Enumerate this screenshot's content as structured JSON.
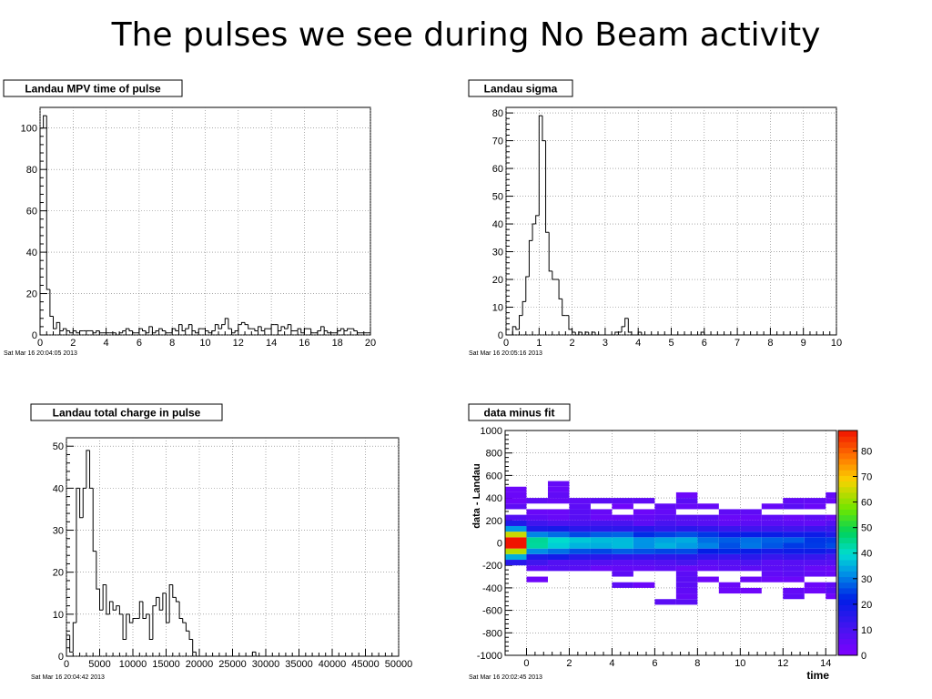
{
  "slide_title": "The pulses we see during No Beam activity",
  "chart_data": [
    {
      "type": "bar",
      "title": "Landau MPV time of pulse",
      "timestamp": "Sat Mar 16 20:04:05 2013",
      "xlabel": "",
      "ylabel": "",
      "xlim": [
        0,
        20
      ],
      "ylim": [
        0,
        110
      ],
      "grid": true,
      "x_ticks": [
        0,
        2,
        4,
        6,
        8,
        10,
        12,
        14,
        16,
        18,
        20
      ],
      "y_ticks": [
        0,
        20,
        40,
        60,
        80,
        100
      ],
      "bin_start": 0,
      "bin_width": 0.2,
      "values": [
        100,
        106,
        22,
        9,
        3,
        6,
        2,
        3,
        2,
        1,
        2,
        1,
        2,
        2,
        2,
        2,
        1,
        2,
        1,
        1,
        1,
        1,
        1,
        0,
        1,
        2,
        3,
        2,
        1,
        1,
        3,
        2,
        1,
        4,
        1,
        2,
        3,
        2,
        1,
        1,
        3,
        2,
        5,
        2,
        3,
        5,
        2,
        1,
        3,
        3,
        2,
        1,
        2,
        5,
        3,
        5,
        8,
        3,
        1,
        2,
        5,
        6,
        5,
        3,
        3,
        2,
        4,
        2,
        3,
        3,
        5,
        5,
        2,
        4,
        3,
        5,
        2,
        2,
        3,
        1,
        3,
        3,
        1,
        1,
        2,
        4,
        2,
        1,
        1,
        1,
        2,
        3,
        2,
        3,
        3,
        2,
        1,
        1,
        1,
        1,
        2,
        3,
        1,
        1,
        2,
        1,
        1,
        1,
        1,
        1,
        1,
        1,
        1,
        0,
        1,
        1,
        0,
        1,
        0,
        1,
        1,
        1,
        0,
        1,
        1,
        1,
        1,
        1,
        0,
        1,
        1,
        1,
        0,
        0,
        1,
        0,
        0,
        0,
        1,
        0,
        0,
        0,
        0,
        0,
        0,
        0,
        0,
        0,
        0,
        0,
        0,
        0,
        0,
        0,
        0,
        0,
        0,
        0,
        0,
        0,
        0,
        0,
        0,
        0,
        0,
        0,
        0,
        0,
        0,
        0,
        0,
        0,
        0,
        0,
        0,
        0,
        0,
        0,
        0,
        0,
        0,
        0,
        0,
        0,
        0,
        0,
        0,
        0,
        0,
        0,
        0,
        0,
        0,
        0,
        0,
        0,
        0,
        0,
        0,
        0
      ]
    },
    {
      "type": "bar",
      "title": "Landau sigma",
      "timestamp": "Sat Mar 16 20:05:16 2013",
      "xlabel": "",
      "ylabel": "",
      "xlim": [
        0,
        10
      ],
      "ylim": [
        0,
        82
      ],
      "grid": true,
      "x_ticks": [
        0,
        1,
        2,
        3,
        4,
        5,
        6,
        7,
        8,
        9,
        10
      ],
      "y_ticks": [
        0,
        10,
        20,
        30,
        40,
        50,
        60,
        70,
        80
      ],
      "bin_start": 0,
      "bin_width": 0.1,
      "values": [
        0,
        0,
        3,
        2,
        7,
        12,
        21,
        34,
        40,
        43,
        79,
        70,
        37,
        23,
        20,
        20,
        13,
        7,
        7,
        2,
        1,
        0,
        1,
        0,
        1,
        0,
        1,
        0,
        0,
        0,
        0,
        0,
        0,
        1,
        1,
        3,
        6,
        1,
        0,
        0,
        1,
        0,
        0,
        0,
        0,
        0,
        0,
        0,
        0,
        0,
        0,
        0,
        0,
        0,
        0,
        0,
        0,
        0,
        0,
        1,
        0,
        0,
        0,
        0,
        0,
        0,
        0,
        0,
        0,
        0,
        0,
        0,
        0,
        0,
        0,
        0,
        0,
        0,
        0,
        0,
        0,
        0,
        0,
        0,
        0,
        0,
        0,
        0,
        0,
        0,
        0,
        0,
        0,
        0,
        0,
        0,
        0,
        0,
        0,
        0
      ]
    },
    {
      "type": "bar",
      "title": "Landau total charge in pulse",
      "timestamp": "Sat Mar 16 20:04:42 2013",
      "xlabel": "",
      "ylabel": "",
      "xlim": [
        0,
        50000
      ],
      "ylim": [
        0,
        52
      ],
      "grid": true,
      "x_ticks": [
        0,
        5000,
        10000,
        15000,
        20000,
        25000,
        30000,
        35000,
        40000,
        45000,
        50000
      ],
      "y_ticks": [
        0,
        10,
        20,
        30,
        40,
        50
      ],
      "bin_start": 0,
      "bin_width": 500,
      "values": [
        5,
        1,
        8,
        40,
        33,
        40,
        49,
        40,
        25,
        16,
        11,
        17,
        10,
        13,
        11,
        12,
        10,
        4,
        10,
        8,
        9,
        9,
        13,
        9,
        10,
        4,
        12,
        14,
        11,
        15,
        8,
        17,
        14,
        13,
        9,
        8,
        6,
        4,
        1,
        0,
        0,
        0,
        0,
        0,
        0,
        0,
        0,
        0,
        0,
        0,
        0,
        0,
        0,
        0,
        0,
        0,
        1,
        0,
        0,
        0,
        0,
        0,
        0,
        0,
        0,
        0,
        0,
        0,
        0,
        0,
        0,
        0,
        0,
        0,
        0,
        0,
        0,
        0,
        0,
        0,
        0,
        0,
        0,
        0,
        0,
        0,
        0,
        0,
        0,
        0,
        0,
        0,
        0,
        0,
        0,
        0,
        0,
        0,
        0,
        0
      ]
    },
    {
      "type": "heatmap",
      "title": "data minus fit",
      "timestamp": "Sat Mar 16 20:02:45 2013",
      "xlabel": "time",
      "ylabel": "data - Landau",
      "xlim": [
        -1,
        14.5
      ],
      "ylim": [
        -1000,
        1000
      ],
      "grid": true,
      "x_ticks": [
        0,
        2,
        4,
        6,
        8,
        10,
        12,
        14
      ],
      "y_ticks": [
        -1000,
        -800,
        -600,
        -400,
        -200,
        0,
        200,
        400,
        600,
        800,
        1000
      ],
      "zlim": [
        0,
        88
      ],
      "z_ticks": [
        0,
        10,
        20,
        30,
        40,
        50,
        60,
        70,
        80
      ],
      "x_bins": [
        -1,
        0,
        1,
        2,
        3,
        4,
        5,
        6,
        7,
        8,
        9,
        10,
        11,
        12,
        13,
        14,
        14.5
      ],
      "y_range_per_column": [
        [
          -180,
          480
        ],
        [
          -420,
          420
        ],
        [
          -320,
          540
        ],
        [
          -240,
          390
        ],
        [
          -240,
          420
        ],
        [
          -380,
          380
        ],
        [
          -400,
          440
        ],
        [
          -560,
          360
        ],
        [
          -560,
          500
        ],
        [
          -420,
          340
        ],
        [
          -480,
          320
        ],
        [
          -440,
          300
        ],
        [
          -460,
          330
        ],
        [
          -480,
          420
        ],
        [
          -450,
          460
        ],
        [
          -480,
          480
        ]
      ],
      "peak_at_zero": [
        88,
        40,
        36,
        33,
        32,
        32,
        30,
        30,
        30,
        26,
        24,
        24,
        22,
        22,
        22,
        20
      ]
    }
  ]
}
